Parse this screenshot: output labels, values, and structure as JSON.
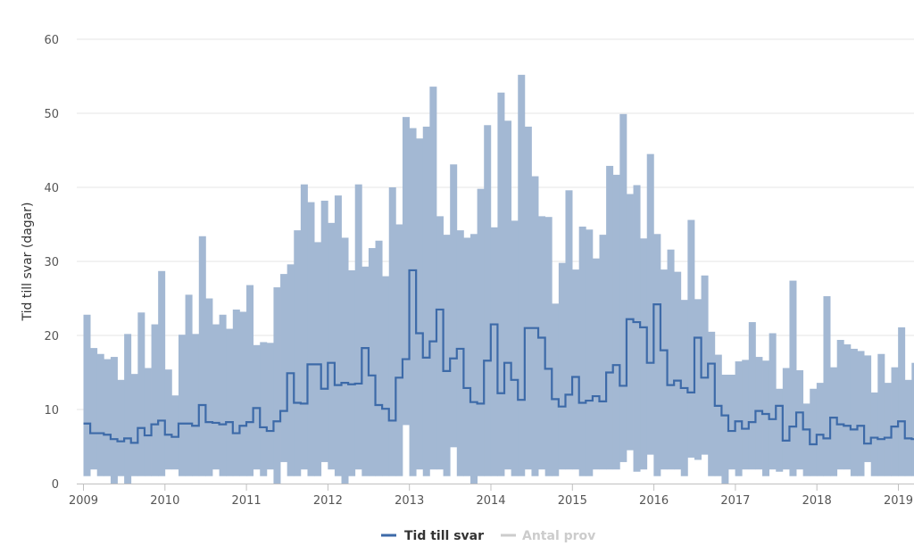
{
  "chart_data": {
    "type": "area",
    "title": "",
    "ylabel": "Tid till svar (dagar)",
    "xlabel": "",
    "ylim": [
      0,
      60
    ],
    "y_ticks": [
      0,
      10,
      20,
      30,
      40,
      50,
      60
    ],
    "x_ticks": [
      "2009",
      "2010",
      "2011",
      "2012",
      "2013",
      "2014",
      "2015",
      "2016",
      "2017",
      "2018",
      "2019"
    ],
    "x_start": 2009.0,
    "x_step": 0.0833,
    "grid": true,
    "legend_position": "bottom-center",
    "colors": {
      "line": "#3d6aa8",
      "range": "#a3b8d3",
      "grid": "#e6e6e6",
      "legend_inactive": "#cccccc"
    },
    "series": [
      {
        "name": "Tid till svar",
        "kind": "step-line",
        "values": [
          8.1,
          6.8,
          6.8,
          6.6,
          6.0,
          5.7,
          6.1,
          5.5,
          7.5,
          6.5,
          8.0,
          8.5,
          6.6,
          6.3,
          8.1,
          8.1,
          7.8,
          10.6,
          8.3,
          8.2,
          8.0,
          8.3,
          6.8,
          7.8,
          8.3,
          10.2,
          7.6,
          7.1,
          8.4,
          9.8,
          14.9,
          10.9,
          10.8,
          16.1,
          16.1,
          12.8,
          16.3,
          13.3,
          13.6,
          13.4,
          13.5,
          18.3,
          14.6,
          10.6,
          10.1,
          8.5,
          14.3,
          16.8,
          28.8,
          20.3,
          17.0,
          19.2,
          23.5,
          15.2,
          16.9,
          18.2,
          12.9,
          11.0,
          10.8,
          16.6,
          21.5,
          12.2,
          16.3,
          14.0,
          11.3,
          21.0,
          21.0,
          19.7,
          15.5,
          11.4,
          10.4,
          12.0,
          14.4,
          10.9,
          11.2,
          11.8,
          11.1,
          15.0,
          16.0,
          13.2,
          22.2,
          21.8,
          21.1,
          16.3,
          24.2,
          18.0,
          13.3,
          13.9,
          12.9,
          12.3,
          19.7,
          14.3,
          16.2,
          10.5,
          9.2,
          7.1,
          8.4,
          7.4,
          8.3,
          9.8,
          9.4,
          8.7,
          10.5,
          5.8,
          7.7,
          9.6,
          7.3,
          5.3,
          6.6,
          6.1,
          8.9,
          8.0,
          7.8,
          7.3,
          7.8,
          5.4,
          6.2,
          6.0,
          6.2,
          7.7,
          8.4,
          6.1,
          6.0,
          6.7
        ]
      },
      {
        "name": "Antal prov",
        "kind": "range",
        "visible": false,
        "high": [
          22.8,
          18.3,
          17.5,
          16.8,
          17.1,
          14.0,
          20.2,
          14.8,
          23.1,
          15.6,
          21.5,
          28.7,
          15.4,
          11.9,
          20.1,
          25.5,
          20.2,
          33.4,
          25.0,
          21.5,
          22.8,
          20.9,
          23.5,
          23.2,
          26.8,
          18.7,
          19.1,
          19.0,
          26.5,
          28.3,
          29.6,
          34.2,
          40.4,
          38.0,
          32.6,
          38.2,
          35.2,
          38.9,
          33.2,
          28.8,
          40.4,
          29.3,
          31.8,
          32.8,
          28.0,
          40.0,
          35.0,
          49.5,
          48.0,
          46.6,
          48.2,
          53.6,
          36.1,
          33.6,
          43.1,
          34.2,
          33.2,
          33.7,
          39.8,
          48.4,
          34.6,
          52.8,
          49.0,
          35.5,
          55.2,
          48.2,
          41.5,
          36.1,
          36.0,
          24.3,
          29.8,
          39.6,
          28.9,
          34.7,
          34.3,
          30.4,
          33.6,
          42.9,
          41.7,
          49.9,
          39.1,
          40.3,
          33.1,
          44.5,
          33.7,
          28.9,
          31.6,
          28.6,
          24.8,
          35.6,
          24.9,
          28.1,
          20.5,
          17.4,
          14.7,
          14.7,
          16.5,
          16.7,
          21.8,
          17.1,
          16.6,
          20.3,
          12.8,
          15.6,
          27.4,
          15.3,
          10.8,
          12.8,
          13.6,
          25.3,
          15.7,
          19.4,
          18.8,
          18.2,
          17.9,
          17.3,
          12.3,
          17.5,
          13.6,
          15.7,
          21.1,
          14.0,
          16.3,
          14.3
        ],
        "low": [
          1.0,
          1.9,
          1.0,
          1.0,
          0.0,
          1.0,
          0.0,
          1.0,
          1.0,
          1.0,
          1.0,
          1.0,
          1.9,
          1.9,
          1.0,
          1.0,
          1.0,
          1.0,
          1.0,
          1.9,
          1.0,
          1.0,
          1.0,
          1.0,
          1.0,
          1.9,
          1.0,
          1.9,
          0.0,
          2.9,
          1.0,
          1.0,
          1.9,
          1.0,
          1.0,
          2.9,
          1.9,
          1.0,
          0.0,
          1.0,
          1.9,
          1.0,
          1.0,
          1.0,
          1.0,
          1.0,
          1.0,
          7.9,
          1.0,
          1.9,
          1.0,
          1.9,
          1.9,
          1.0,
          4.9,
          1.0,
          1.0,
          0.0,
          1.0,
          1.0,
          1.0,
          1.0,
          1.9,
          1.0,
          1.0,
          1.9,
          1.0,
          1.9,
          1.0,
          1.0,
          1.9,
          1.9,
          1.9,
          1.0,
          1.0,
          1.9,
          1.9,
          1.9,
          1.9,
          2.9,
          4.5,
          1.6,
          1.9,
          3.9,
          1.0,
          1.9,
          1.9,
          1.9,
          1.0,
          3.5,
          3.2,
          3.9,
          1.0,
          1.0,
          0.0,
          1.9,
          1.0,
          1.9,
          1.9,
          1.9,
          1.0,
          1.9,
          1.6,
          1.9,
          1.0,
          1.9,
          1.0,
          1.0,
          1.0,
          1.0,
          1.0,
          1.9,
          1.9,
          1.0,
          1.0,
          2.9,
          1.0,
          1.0,
          1.0,
          1.0,
          1.0,
          1.0,
          1.0,
          1.0
        ]
      }
    ]
  }
}
